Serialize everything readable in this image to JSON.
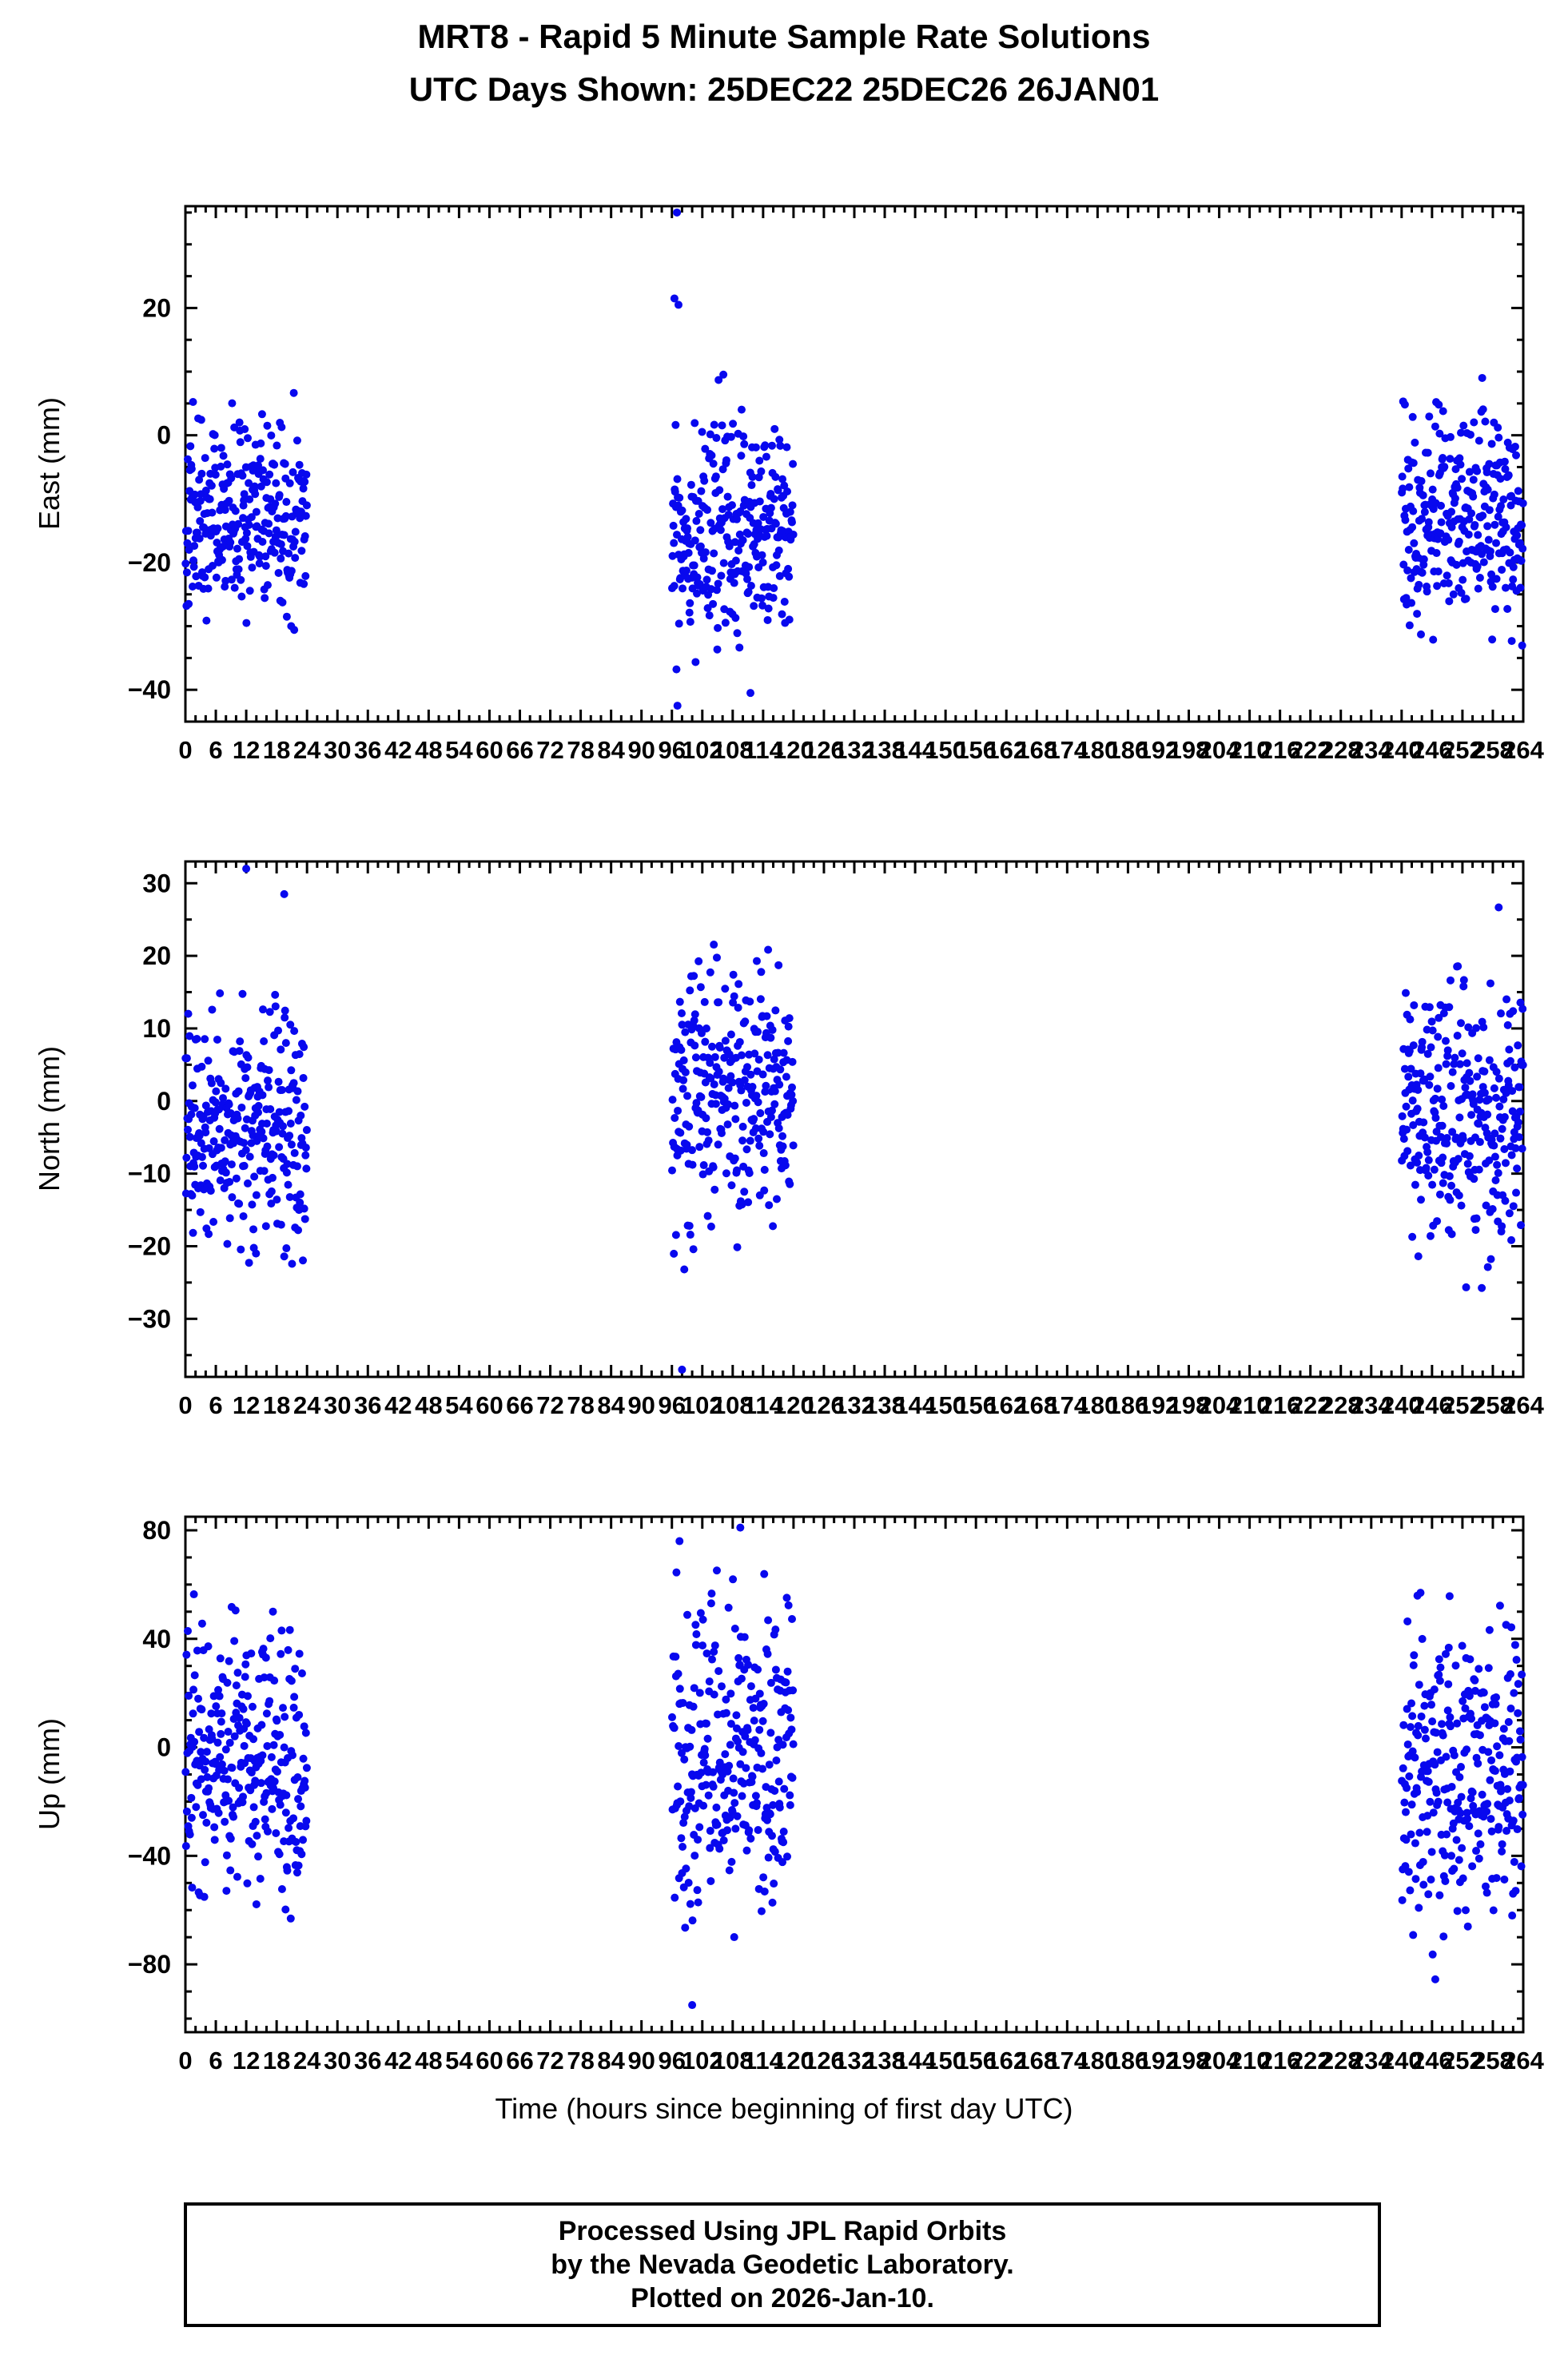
{
  "page": {
    "title_line1": "MRT8 - Rapid 5 Minute Sample Rate Solutions",
    "title_line2": "UTC Days Shown:  25DEC22 25DEC26 26JAN01"
  },
  "footer": {
    "line1": "Processed Using JPL Rapid Orbits",
    "line2": "by the Nevada Geodetic Laboratory.",
    "line3": "Plotted on 2026-Jan-10."
  },
  "chart_data": {
    "type": "scatter",
    "marker_color": "#0808ee",
    "marker_radius": 5,
    "seed": 42,
    "points_per_cluster": 280,
    "x_axis": {
      "label": "Time (hours since beginning of first day UTC)",
      "min": 0,
      "max": 264,
      "major_tick_step": 6,
      "minor_tick_step": 2
    },
    "clusters": [
      {
        "start": 0,
        "end": 24
      },
      {
        "start": 96,
        "end": 120
      },
      {
        "start": 240,
        "end": 264
      }
    ],
    "subplots": [
      {
        "name": "east",
        "ylabel": "East (mm)",
        "ymin": -45,
        "ymax": 36,
        "yticks": [
          -40,
          -20,
          0,
          20
        ],
        "minor_step": 5,
        "cluster_stats": [
          {
            "mean": -13,
            "sd": 7.5,
            "min": -35,
            "max": 8
          },
          {
            "mean": -15,
            "sd": 8.5,
            "min": -41,
            "max": 12
          },
          {
            "mean": -14,
            "sd": 8.5,
            "min": -37,
            "max": 13
          }
        ],
        "outliers": [
          [
            97.0,
            35.0
          ],
          [
            96.5,
            21.5
          ],
          [
            97.3,
            20.5
          ],
          [
            97.1,
            -42.5
          ],
          [
            111.5,
            -40.5
          ]
        ]
      },
      {
        "name": "north",
        "ylabel": "North (mm)",
        "ymin": -38,
        "ymax": 33,
        "yticks": [
          -30,
          -20,
          -10,
          0,
          10,
          20,
          30
        ],
        "minor_step": 5,
        "cluster_stats": [
          {
            "mean": -4,
            "sd": 8,
            "min": -24,
            "max": 21
          },
          {
            "mean": 1,
            "sd": 9,
            "min": -25,
            "max": 31
          },
          {
            "mean": -1,
            "sd": 9,
            "min": -28.5,
            "max": 27
          }
        ],
        "outliers": [
          [
            12.0,
            32.0
          ],
          [
            19.5,
            28.5
          ],
          [
            98.0,
            -37.0
          ]
        ]
      },
      {
        "name": "up",
        "ylabel": "Up (mm)",
        "ymin": -105,
        "ymax": 85,
        "yticks": [
          -80,
          -40,
          0,
          40,
          80
        ],
        "minor_step": 10,
        "cluster_stats": [
          {
            "mean": -8,
            "sd": 26,
            "min": -66,
            "max": 70
          },
          {
            "mean": -5,
            "sd": 30,
            "min": -96,
            "max": 81
          },
          {
            "mean": -10,
            "sd": 27,
            "min": -96,
            "max": 57
          }
        ],
        "outliers": [
          [
            109.5,
            81.0
          ],
          [
            97.5,
            76.0
          ],
          [
            100.0,
            -95.0
          ]
        ]
      }
    ]
  }
}
